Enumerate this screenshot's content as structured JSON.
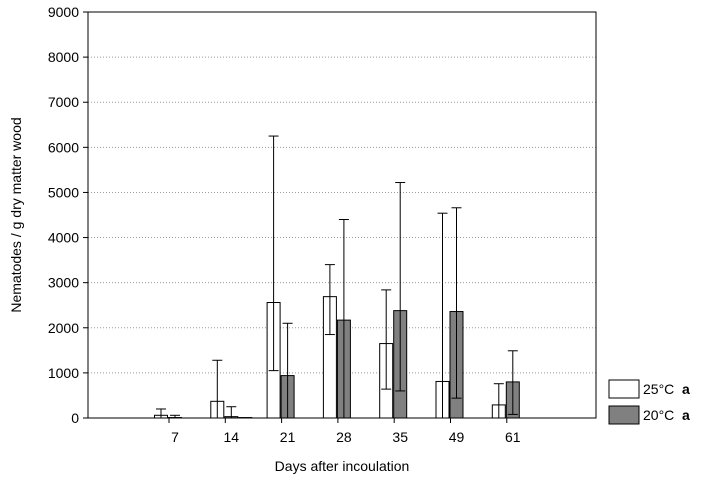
{
  "chart_data": {
    "type": "bar",
    "xlabel": "Days after incoulation",
    "ylabel": "Nematodes / g dry matter wood",
    "categories": [
      "7",
      "14",
      "21",
      "28",
      "35",
      "49",
      "61"
    ],
    "ylim": [
      0,
      9000
    ],
    "yticks": [
      "0",
      "1000",
      "2000",
      "3000",
      "4000",
      "5000",
      "6000",
      "7000",
      "8000",
      "9000"
    ],
    "grid": "horizontal dotted",
    "legend_position": "bottom-right, outside plot",
    "series": [
      {
        "name": "25°C",
        "mark": "a",
        "color": "#ffffff",
        "values": [
          60,
          370,
          2560,
          2690,
          1650,
          810,
          290
        ],
        "err_high": [
          200,
          1280,
          6250,
          3400,
          2840,
          4540,
          760
        ],
        "err_low": [
          0,
          0,
          1050,
          1850,
          640,
          0,
          0
        ]
      },
      {
        "name": "20°C",
        "mark": "a",
        "color": "#808080",
        "values": [
          10,
          30,
          940,
          2170,
          2380,
          2360,
          800
        ],
        "err_high": [
          60,
          250,
          2100,
          4400,
          5220,
          4660,
          1490
        ],
        "err_low": [
          0,
          0,
          0,
          0,
          600,
          440,
          80
        ]
      },
      {
        "name": "",
        "color": "#ffffff",
        "values": [
          0,
          10,
          0,
          0,
          0,
          0,
          0
        ],
        "err_high": [
          0,
          0,
          0,
          0,
          0,
          0,
          0
        ],
        "err_low": [
          0,
          0,
          0,
          0,
          0,
          0,
          0
        ]
      }
    ]
  }
}
